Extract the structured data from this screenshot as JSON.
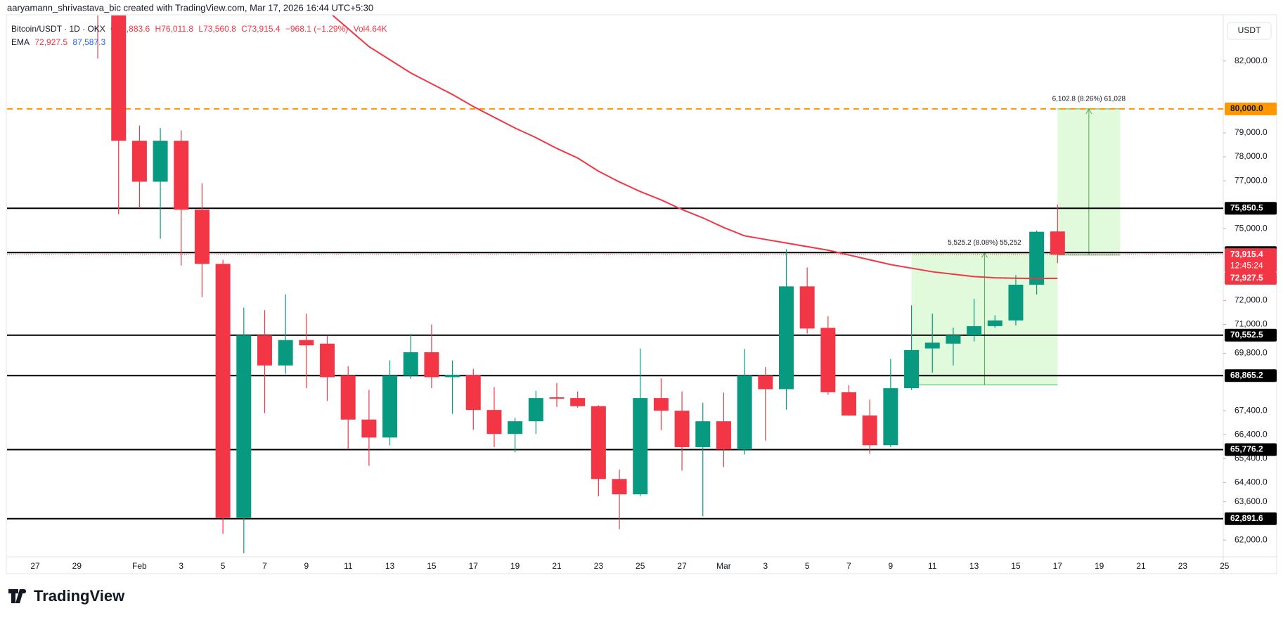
{
  "chart_data": {
    "type": "candlestick",
    "credit": "aaryamann_shrivastava_bic created with TradingView.com, Mar 17, 2026 16:44 UTC+5:30",
    "brand": "TradingView",
    "y_unit": "USDT",
    "ohlc_legend": [
      "O74,883.6",
      "H76,011.8",
      "L73,560.8",
      "C73,915.4",
      "−968.1 (−1.29%)",
      "Vol4.64K"
    ],
    "ema_legend": [
      "72,927.5",
      "87,587.3"
    ],
    "categories": [
      "27",
      null,
      "29",
      null,
      null,
      "Feb",
      null,
      "3",
      null,
      "5",
      null,
      "7",
      null,
      "9",
      null,
      "11",
      null,
      "13",
      null,
      "15",
      null,
      "17",
      null,
      "19",
      null,
      "21",
      null,
      "23",
      null,
      "25",
      null,
      "27",
      null,
      "Mar",
      null,
      "3",
      null,
      "5",
      null,
      "7",
      null,
      "9",
      null,
      "11",
      null,
      "13",
      null,
      "15",
      null,
      "17",
      null,
      "19",
      null,
      "21",
      null,
      "23",
      null,
      "25"
    ],
    "series": [
      {
        "name": "Bitcoin/USDT · 1D · OKX",
        "type": "candlestick",
        "up_color": "#089981",
        "down_color": "#f23645",
        "open": [
          null,
          null,
          null,
          85200,
          84300,
          78670,
          76960,
          78670,
          75790,
          73530,
          62930,
          70550,
          69290,
          70350,
          70200,
          68865,
          67030,
          66280,
          68865,
          69840,
          68800,
          68900,
          67430,
          66430,
          66960,
          67960,
          67930,
          67590,
          64550,
          63910,
          67930,
          67400,
          65880,
          66960,
          65780,
          68865,
          68300,
          72590,
          70860,
          68170,
          67200,
          65960,
          68340,
          70000,
          70200,
          70550,
          70930,
          71170,
          72660,
          74883.6,
          null,
          null,
          null,
          null,
          null,
          null,
          null,
          null
        ],
        "high": [
          null,
          null,
          null,
          85900,
          84600,
          79300,
          79200,
          79100,
          76900,
          73700,
          71700,
          71600,
          72250,
          71450,
          70520,
          69260,
          68270,
          69500,
          70600,
          71000,
          69500,
          69150,
          68380,
          67100,
          68230,
          68550,
          68200,
          67620,
          64940,
          70000,
          68750,
          68200,
          67730,
          68160,
          69980,
          69220,
          74140,
          73380,
          71340,
          68470,
          67860,
          69560,
          71800,
          71450,
          70870,
          72070,
          71380,
          73060,
          74930,
          76011.8,
          null,
          null,
          null,
          null,
          null,
          null,
          null,
          null
        ],
        "low": [
          null,
          null,
          null,
          82100,
          75600,
          75850,
          74580,
          73460,
          72140,
          62270,
          61450,
          67300,
          68940,
          68340,
          67810,
          65820,
          65100,
          65950,
          68730,
          68340,
          67270,
          66600,
          65880,
          65660,
          66430,
          67560,
          67530,
          63830,
          62450,
          63830,
          66590,
          64900,
          62990,
          65050,
          65570,
          66150,
          67440,
          70620,
          68070,
          67190,
          65600,
          65880,
          68270,
          68990,
          69290,
          70290,
          70860,
          70960,
          72250,
          73560.8,
          null,
          null,
          null,
          null,
          null,
          null,
          null,
          null
        ],
        "close": [
          null,
          null,
          null,
          84300,
          78670,
          76960,
          78670,
          75790,
          73530,
          62930,
          70550,
          69290,
          70350,
          70130,
          68800,
          67030,
          66280,
          68865,
          69840,
          68800,
          68900,
          67430,
          66430,
          66960,
          67930,
          67900,
          67590,
          64550,
          63910,
          67930,
          67400,
          65880,
          66960,
          65780,
          68865,
          68300,
          72590,
          70830,
          68170,
          67200,
          65960,
          68340,
          69930,
          70240,
          70550,
          70930,
          71170,
          72660,
          74870,
          73915.4,
          null,
          null,
          null,
          null,
          null,
          null,
          null,
          null
        ]
      },
      {
        "name": "EMA",
        "type": "line",
        "color": "#f23645",
        "values": [
          null,
          null,
          null,
          null,
          null,
          null,
          null,
          null,
          null,
          null,
          null,
          null,
          null,
          null,
          84100,
          83350,
          82600,
          82050,
          81500,
          81050,
          80600,
          80100,
          79650,
          79200,
          78800,
          78350,
          77950,
          77400,
          76950,
          76550,
          76200,
          75800,
          75450,
          75050,
          74700,
          74550,
          74400,
          74250,
          74100,
          73900,
          73700,
          73500,
          73350,
          73200,
          73100,
          73000,
          72950,
          72930,
          72920,
          72927.5,
          null,
          null,
          null,
          null,
          null,
          null,
          null,
          null
        ]
      }
    ],
    "ylim": [
      61300,
      83900
    ],
    "yticks": [
      {
        "value": 62000,
        "label": "62,000.0"
      },
      {
        "value": 63600,
        "label": "63,600.0"
      },
      {
        "value": 64400,
        "label": "64,400.0"
      },
      {
        "value": 65400,
        "label": "65,400.0"
      },
      {
        "value": 66400,
        "label": "66,400.0"
      },
      {
        "value": 67400,
        "label": "67,400.0"
      },
      {
        "value": 69800,
        "label": "69,800.0"
      },
      {
        "value": 71000,
        "label": "71,000.0"
      },
      {
        "value": 72000,
        "label": "72,000.0"
      },
      {
        "value": 75000,
        "label": "75,000.0"
      },
      {
        "value": 77000,
        "label": "77,000.0"
      },
      {
        "value": 78000,
        "label": "78,000.0"
      },
      {
        "value": 79000,
        "label": "79,000.0"
      },
      {
        "value": 82000,
        "label": "82,000.0"
      }
    ],
    "grid": false,
    "hlines": [
      {
        "value": 80000,
        "label": "80,000.0",
        "color": "#ff9800",
        "style": "dashed"
      },
      {
        "value": 75850.5,
        "label": "75,850.5",
        "color": "#000000",
        "style": "solid"
      },
      {
        "value": 74000.1,
        "label": "74,000.1",
        "color": "#000000",
        "style": "solid"
      },
      {
        "value": 70552.5,
        "label": "70,552.5",
        "color": "#000000",
        "style": "solid"
      },
      {
        "value": 68865.2,
        "label": "68,865.2",
        "color": "#000000",
        "style": "solid"
      },
      {
        "value": 65776.2,
        "label": "65,776.2",
        "color": "#000000",
        "style": "solid"
      },
      {
        "value": 62891.6,
        "label": "62,891.6",
        "color": "#000000",
        "style": "solid"
      }
    ],
    "last_price": {
      "value": 73915.4,
      "label": "73,915.4",
      "countdown": "12:45:24",
      "color": "#f23645"
    },
    "ema_price": {
      "value": 72927.5,
      "label": "72,927.5",
      "color": "#f23645"
    },
    "measures": [
      {
        "from": 68474.9,
        "to": 74000.1,
        "label": "5,525.2 (8.08%) 55,252"
      },
      {
        "from": 73897.2,
        "to": 80000,
        "label": "6,102.8 (8.26%) 61,028"
      }
    ]
  }
}
